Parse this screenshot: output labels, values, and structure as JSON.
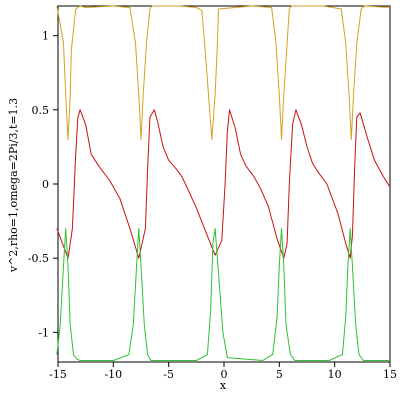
{
  "chart_data": {
    "type": "line",
    "xlabel": "x",
    "ylabel": "v^2,rho=1,omega=2Pi/3,t=1.3",
    "xlim": [
      -15,
      15
    ],
    "ylim": [
      -1.2,
      1.2
    ],
    "x_ticks": [
      -15,
      -10,
      -5,
      0,
      5,
      10,
      15
    ],
    "y_ticks": [
      -1,
      -0.5,
      0,
      0.5,
      1
    ],
    "x_tick_labels": [
      "-15",
      "-10",
      "-5",
      "0",
      "5",
      "10",
      "15"
    ],
    "y_tick_labels": [
      "-1",
      "-0.5",
      "0",
      "0.5",
      "1"
    ],
    "grid": false,
    "series": [
      {
        "color": "#d4a020",
        "x": [
          -15.1,
          -14.5,
          -14.3,
          -14.1,
          -13.9,
          -13.8,
          -13.4,
          -13.0,
          -12.5,
          -10.0,
          -8.5,
          -8.0,
          -7.7,
          -7.5,
          -7.3,
          -7.0,
          -6.7,
          -6.5,
          -4.0,
          -2.5,
          -2.0,
          -1.6,
          -1.3,
          -1.1,
          -0.8,
          -0.6,
          -0.5,
          2.5,
          4.3,
          4.7,
          5.0,
          5.2,
          5.4,
          5.7,
          5.9,
          6.1,
          9.0,
          10.6,
          11.0,
          11.3,
          11.5,
          11.7,
          12.0,
          12.4,
          12.7,
          15.0
        ],
        "y": [
          1.2,
          0.95,
          0.6,
          0.3,
          0.6,
          0.9,
          1.18,
          1.2,
          1.19,
          1.2,
          1.19,
          0.95,
          0.6,
          0.3,
          0.6,
          0.95,
          1.18,
          1.2,
          1.2,
          1.19,
          1.17,
          0.8,
          0.5,
          0.3,
          0.6,
          0.95,
          1.18,
          1.2,
          1.19,
          0.95,
          0.6,
          0.3,
          0.6,
          0.95,
          1.18,
          1.2,
          1.2,
          1.18,
          0.95,
          0.6,
          0.3,
          0.6,
          0.95,
          1.18,
          1.2,
          1.19
        ]
      },
      {
        "color": "#cc1010",
        "x": [
          -15.1,
          -14.6,
          -14.1,
          -13.7,
          -13.4,
          -13.2,
          -13.0,
          -12.5,
          -12.0,
          -11.3,
          -10.3,
          -9.4,
          -8.5,
          -7.7,
          -7.1,
          -6.9,
          -6.7,
          -6.3,
          -6.0,
          -5.5,
          -5.0,
          -4.3,
          -3.8,
          -3.3,
          -2.5,
          -1.5,
          -0.8,
          -0.2,
          0.1,
          0.3,
          0.5,
          1.0,
          1.5,
          2.0,
          2.7,
          3.3,
          4.0,
          4.8,
          5.4,
          5.7,
          5.9,
          6.2,
          6.5,
          7.0,
          7.5,
          8.0,
          8.5,
          9.3,
          10.3,
          11.0,
          11.4,
          11.6,
          11.8,
          12.0,
          12.3,
          13.0,
          13.6,
          14.4,
          15.0
        ],
        "y": [
          -0.3,
          -0.4,
          -0.5,
          -0.3,
          0.2,
          0.45,
          0.5,
          0.4,
          0.2,
          0.12,
          0.02,
          -0.1,
          -0.3,
          -0.5,
          -0.3,
          0.1,
          0.45,
          0.5,
          0.42,
          0.25,
          0.16,
          0.1,
          0.05,
          -0.03,
          -0.16,
          -0.35,
          -0.48,
          -0.38,
          0.0,
          0.35,
          0.5,
          0.38,
          0.2,
          0.12,
          0.05,
          -0.03,
          -0.15,
          -0.37,
          -0.5,
          -0.4,
          0.0,
          0.4,
          0.5,
          0.4,
          0.25,
          0.14,
          0.08,
          0.0,
          -0.2,
          -0.4,
          -0.5,
          -0.35,
          0.1,
          0.45,
          0.48,
          0.3,
          0.16,
          0.05,
          -0.02
        ]
      },
      {
        "color": "#30c030",
        "x": [
          -15.1,
          -14.8,
          -14.5,
          -14.3,
          -14.1,
          -13.9,
          -13.6,
          -13.3,
          -13.0,
          -10.0,
          -8.6,
          -8.2,
          -7.9,
          -7.7,
          -7.5,
          -7.2,
          -6.9,
          -6.6,
          -6.3,
          -2.5,
          -1.5,
          -1.2,
          -1.0,
          -0.8,
          -0.5,
          -0.1,
          0.3,
          3.5,
          4.4,
          4.8,
          5.0,
          5.2,
          5.4,
          5.6,
          6.0,
          6.4,
          9.5,
          10.7,
          11.0,
          11.2,
          11.4,
          11.6,
          11.9,
          12.2,
          12.6,
          15.0
        ],
        "y": [
          -1.15,
          -0.95,
          -0.55,
          -0.3,
          -0.55,
          -0.95,
          -1.15,
          -1.18,
          -1.19,
          -1.19,
          -1.15,
          -0.95,
          -0.55,
          -0.3,
          -0.55,
          -0.95,
          -1.15,
          -1.19,
          -1.19,
          -1.19,
          -1.15,
          -0.85,
          -0.4,
          -0.3,
          -0.6,
          -1.0,
          -1.17,
          -1.19,
          -1.15,
          -0.9,
          -0.55,
          -0.3,
          -0.55,
          -0.95,
          -1.15,
          -1.19,
          -1.19,
          -1.15,
          -0.9,
          -0.55,
          -0.3,
          -0.55,
          -0.95,
          -1.15,
          -1.19,
          -1.19
        ]
      }
    ]
  }
}
